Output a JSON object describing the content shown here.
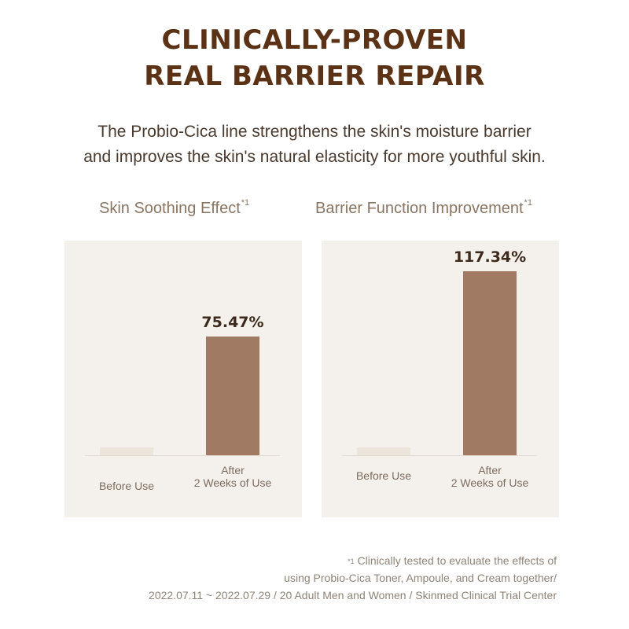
{
  "headline": {
    "line1": "CLINICALLY-PROVEN",
    "line2": "REAL BARRIER REPAIR"
  },
  "intro": {
    "line1": "The Probio-Cica line strengthens the skin's moisture barrier",
    "line2": "and improves the skin's natural elasticity for more youthful skin."
  },
  "colors": {
    "headline": "#5b3216",
    "bar_after": "#a07a62",
    "bar_before": "#ece6da",
    "panel_bg": "#f4f1ec"
  },
  "chart_data": [
    {
      "type": "bar",
      "title": "Skin Soothing Effect",
      "title_note": "*1",
      "categories": [
        "Before Use",
        "After 2 Weeks of Use"
      ],
      "category_lines": [
        [
          "Before Use"
        ],
        [
          "After",
          "2 Weeks of Use"
        ]
      ],
      "values": [
        0,
        75.47
      ],
      "value_labels": [
        "",
        "75.47%"
      ],
      "unit": "%"
    },
    {
      "type": "bar",
      "title": "Barrier Function Improvement",
      "title_note": "*1",
      "categories": [
        "Before Use",
        "After 2 Weeks of Use"
      ],
      "category_lines": [
        [
          "Before Use"
        ],
        [
          "After",
          "2 Weeks of Use"
        ]
      ],
      "values": [
        0,
        117.34
      ],
      "value_labels": [
        "",
        "117.34%"
      ],
      "unit": "%"
    }
  ],
  "footnote": {
    "mark": "*1",
    "line1": " Clinically tested to evaluate the effects of",
    "line2": "using Probio-Cica Toner, Ampoule, and Cream together/",
    "line3": "2022.07.11 ~ 2022.07.29 / 20 Adult Men and Women / Skinmed Clinical Trial Center"
  }
}
